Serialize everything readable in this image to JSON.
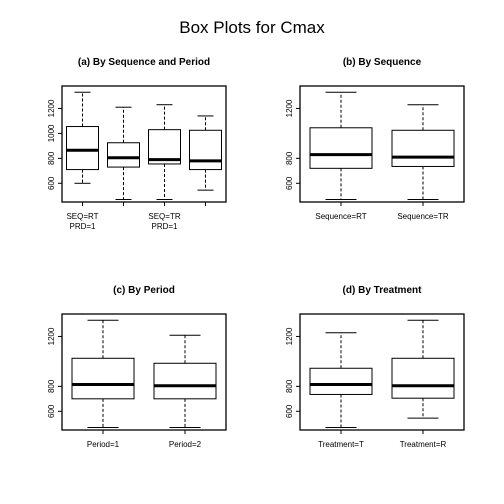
{
  "title": "Box Plots for Cmax",
  "chart_data": [
    {
      "type": "box",
      "title": "(a) By Sequence and Period",
      "ylim": [
        450,
        1380
      ],
      "yticks": [
        600,
        800,
        1000,
        1200
      ],
      "category_labels": [
        {
          "group": 1,
          "lines": [
            "SEQ=RT",
            "PRD=1"
          ]
        },
        {
          "group": 3,
          "lines": [
            "SEQ=TR",
            "PRD=1"
          ]
        }
      ],
      "boxes": [
        {
          "min": 600,
          "q1": 710,
          "median": 865,
          "q3": 1055,
          "max": 1330
        },
        {
          "min": 470,
          "q1": 730,
          "median": 805,
          "q3": 925,
          "max": 1210
        },
        {
          "min": 470,
          "q1": 755,
          "median": 790,
          "q3": 1030,
          "max": 1230
        },
        {
          "min": 545,
          "q1": 710,
          "median": 780,
          "q3": 1025,
          "max": 1140
        }
      ]
    },
    {
      "type": "box",
      "title": "(b) By Sequence",
      "ylim": [
        450,
        1380
      ],
      "yticks": [
        600,
        800,
        1200
      ],
      "category_labels": [
        {
          "group": 1,
          "lines": [
            "Sequence=RT"
          ]
        },
        {
          "group": 2,
          "lines": [
            "Sequence=TR"
          ]
        }
      ],
      "boxes": [
        {
          "min": 470,
          "q1": 720,
          "median": 830,
          "q3": 1045,
          "max": 1330
        },
        {
          "min": 470,
          "q1": 735,
          "median": 810,
          "q3": 1025,
          "max": 1230
        }
      ]
    },
    {
      "type": "box",
      "title": "(c) By Period",
      "ylim": [
        450,
        1380
      ],
      "yticks": [
        600,
        800,
        1200
      ],
      "category_labels": [
        {
          "group": 1,
          "lines": [
            "Period=1"
          ]
        },
        {
          "group": 2,
          "lines": [
            "Period=2"
          ]
        }
      ],
      "boxes": [
        {
          "min": 470,
          "q1": 700,
          "median": 815,
          "q3": 1025,
          "max": 1330
        },
        {
          "min": 470,
          "q1": 700,
          "median": 805,
          "q3": 985,
          "max": 1210
        }
      ]
    },
    {
      "type": "box",
      "title": "(d) By Treatment",
      "ylim": [
        450,
        1380
      ],
      "yticks": [
        600,
        800,
        1200
      ],
      "category_labels": [
        {
          "group": 1,
          "lines": [
            "Treatment=T"
          ]
        },
        {
          "group": 2,
          "lines": [
            "Treatment=R"
          ]
        }
      ],
      "boxes": [
        {
          "min": 470,
          "q1": 735,
          "median": 815,
          "q3": 945,
          "max": 1230
        },
        {
          "min": 545,
          "q1": 705,
          "median": 805,
          "q3": 1025,
          "max": 1330
        }
      ]
    }
  ]
}
